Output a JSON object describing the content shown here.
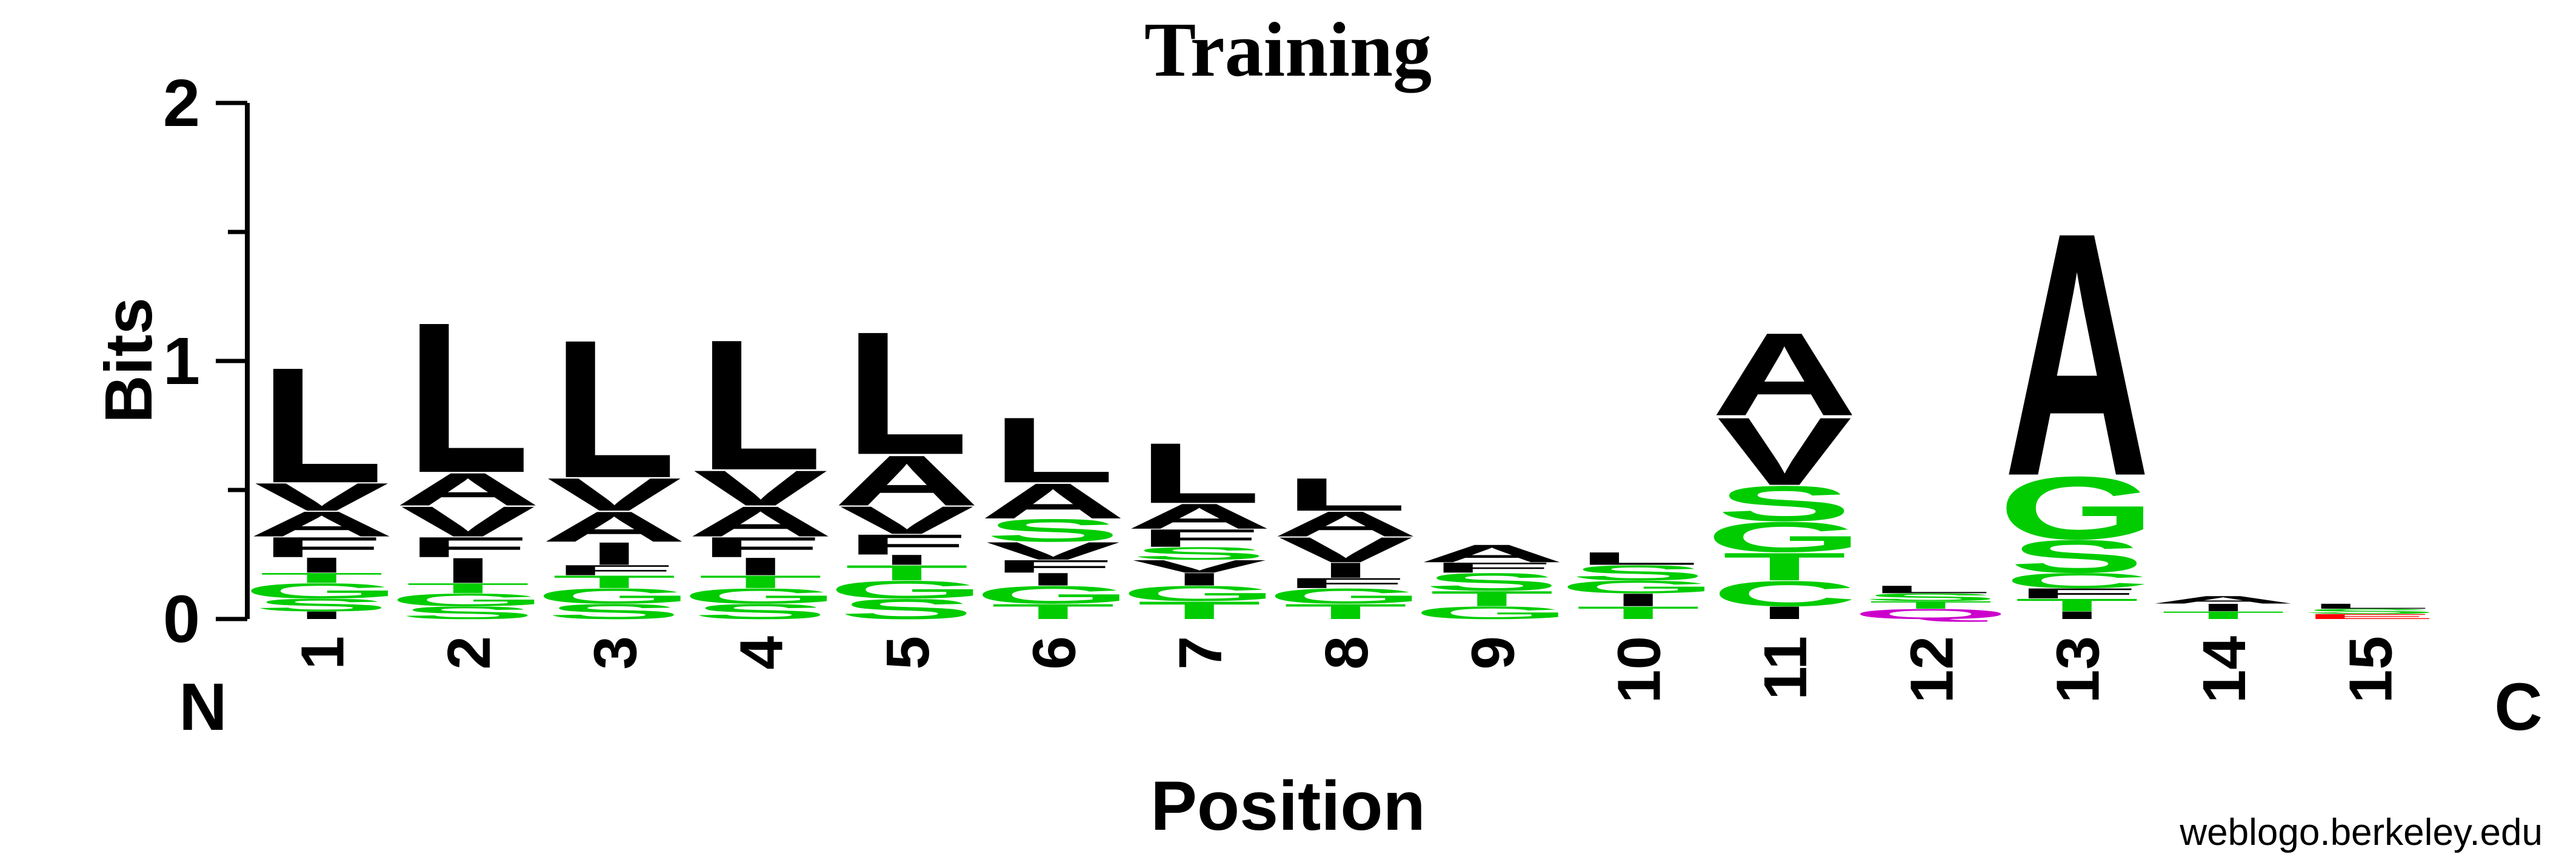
{
  "chart_data": {
    "type": "sequence_logo",
    "title": "Training",
    "ylabel": "Bits",
    "xlabel": "Position",
    "ylim": [
      0,
      2
    ],
    "yticks": [
      "0",
      "1",
      "2"
    ],
    "n_terminal_label": "N",
    "c_terminal_label": "C",
    "footer": "weblogo.berkeley.edu",
    "colors": {
      "hydrophobic": "#000000",
      "polar": "#00cc00",
      "basic": "#0000ff",
      "acidic": "#ff0000",
      "amide": "#cc00cc"
    },
    "positions": [
      {
        "pos": "1",
        "stack": [
          {
            "aa": "I",
            "bits": 0.03,
            "color": "#000000"
          },
          {
            "aa": "S",
            "bits": 0.05,
            "color": "#00cc00"
          },
          {
            "aa": "G",
            "bits": 0.06,
            "color": "#00cc00"
          },
          {
            "aa": "T",
            "bits": 0.04,
            "color": "#00cc00"
          },
          {
            "aa": "I",
            "bits": 0.06,
            "color": "#000000"
          },
          {
            "aa": "F",
            "bits": 0.08,
            "color": "#000000"
          },
          {
            "aa": "A",
            "bits": 0.1,
            "color": "#000000"
          },
          {
            "aa": "V",
            "bits": 0.11,
            "color": "#000000"
          },
          {
            "aa": "L",
            "bits": 0.46,
            "color": "#000000"
          }
        ]
      },
      {
        "pos": "2",
        "stack": [
          {
            "aa": "S",
            "bits": 0.05,
            "color": "#00cc00"
          },
          {
            "aa": "G",
            "bits": 0.05,
            "color": "#00cc00"
          },
          {
            "aa": "T",
            "bits": 0.04,
            "color": "#00cc00"
          },
          {
            "aa": "I",
            "bits": 0.1,
            "color": "#000000"
          },
          {
            "aa": "F",
            "bits": 0.08,
            "color": "#000000"
          },
          {
            "aa": "V",
            "bits": 0.12,
            "color": "#000000"
          },
          {
            "aa": "A",
            "bits": 0.13,
            "color": "#000000"
          },
          {
            "aa": "L",
            "bits": 0.6,
            "color": "#000000"
          }
        ]
      },
      {
        "pos": "3",
        "stack": [
          {
            "aa": "S",
            "bits": 0.06,
            "color": "#00cc00"
          },
          {
            "aa": "G",
            "bits": 0.06,
            "color": "#00cc00"
          },
          {
            "aa": "T",
            "bits": 0.05,
            "color": "#00cc00"
          },
          {
            "aa": "F",
            "bits": 0.04,
            "color": "#000000"
          },
          {
            "aa": "I",
            "bits": 0.09,
            "color": "#000000"
          },
          {
            "aa": "A",
            "bits": 0.12,
            "color": "#000000"
          },
          {
            "aa": "V",
            "bits": 0.13,
            "color": "#000000"
          },
          {
            "aa": "L",
            "bits": 0.55,
            "color": "#000000"
          }
        ]
      },
      {
        "pos": "4",
        "stack": [
          {
            "aa": "S",
            "bits": 0.06,
            "color": "#00cc00"
          },
          {
            "aa": "G",
            "bits": 0.06,
            "color": "#00cc00"
          },
          {
            "aa": "T",
            "bits": 0.05,
            "color": "#00cc00"
          },
          {
            "aa": "I",
            "bits": 0.07,
            "color": "#000000"
          },
          {
            "aa": "F",
            "bits": 0.08,
            "color": "#000000"
          },
          {
            "aa": "A",
            "bits": 0.12,
            "color": "#000000"
          },
          {
            "aa": "V",
            "bits": 0.14,
            "color": "#000000"
          },
          {
            "aa": "L",
            "bits": 0.52,
            "color": "#000000"
          }
        ]
      },
      {
        "pos": "5",
        "stack": [
          {
            "aa": "S",
            "bits": 0.08,
            "color": "#00cc00"
          },
          {
            "aa": "G",
            "bits": 0.07,
            "color": "#00cc00"
          },
          {
            "aa": "T",
            "bits": 0.06,
            "color": "#00cc00"
          },
          {
            "aa": "I",
            "bits": 0.04,
            "color": "#000000"
          },
          {
            "aa": "F",
            "bits": 0.08,
            "color": "#000000"
          },
          {
            "aa": "V",
            "bits": 0.11,
            "color": "#000000"
          },
          {
            "aa": "A",
            "bits": 0.2,
            "color": "#000000"
          },
          {
            "aa": "L",
            "bits": 0.49,
            "color": "#000000"
          }
        ]
      },
      {
        "pos": "6",
        "stack": [
          {
            "aa": "T",
            "bits": 0.06,
            "color": "#00cc00"
          },
          {
            "aa": "G",
            "bits": 0.07,
            "color": "#00cc00"
          },
          {
            "aa": "I",
            "bits": 0.05,
            "color": "#000000"
          },
          {
            "aa": "F",
            "bits": 0.05,
            "color": "#000000"
          },
          {
            "aa": "V",
            "bits": 0.07,
            "color": "#000000"
          },
          {
            "aa": "S",
            "bits": 0.09,
            "color": "#00cc00"
          },
          {
            "aa": "A",
            "bits": 0.14,
            "color": "#000000"
          },
          {
            "aa": "L",
            "bits": 0.26,
            "color": "#000000"
          }
        ]
      },
      {
        "pos": "7",
        "stack": [
          {
            "aa": "T",
            "bits": 0.07,
            "color": "#00cc00"
          },
          {
            "aa": "G",
            "bits": 0.06,
            "color": "#00cc00"
          },
          {
            "aa": "I",
            "bits": 0.05,
            "color": "#000000"
          },
          {
            "aa": "V",
            "bits": 0.05,
            "color": "#000000"
          },
          {
            "aa": "S",
            "bits": 0.05,
            "color": "#00cc00"
          },
          {
            "aa": "F",
            "bits": 0.07,
            "color": "#000000"
          },
          {
            "aa": "A",
            "bits": 0.1,
            "color": "#000000"
          },
          {
            "aa": "L",
            "bits": 0.24,
            "color": "#000000"
          }
        ]
      },
      {
        "pos": "8",
        "stack": [
          {
            "aa": "T",
            "bits": 0.06,
            "color": "#00cc00"
          },
          {
            "aa": "G",
            "bits": 0.06,
            "color": "#00cc00"
          },
          {
            "aa": "F",
            "bits": 0.04,
            "color": "#000000"
          },
          {
            "aa": "I",
            "bits": 0.06,
            "color": "#000000"
          },
          {
            "aa": "V",
            "bits": 0.1,
            "color": "#000000"
          },
          {
            "aa": "A",
            "bits": 0.1,
            "color": "#000000"
          },
          {
            "aa": "L",
            "bits": 0.13,
            "color": "#000000"
          }
        ]
      },
      {
        "pos": "9",
        "stack": [
          {
            "aa": "G",
            "bits": 0.05,
            "color": "#00cc00"
          },
          {
            "aa": "T",
            "bits": 0.06,
            "color": "#00cc00"
          },
          {
            "aa": "S",
            "bits": 0.07,
            "color": "#00cc00"
          },
          {
            "aa": "F",
            "bits": 0.04,
            "color": "#000000"
          },
          {
            "aa": "A",
            "bits": 0.07,
            "color": "#000000"
          }
        ]
      },
      {
        "pos": "10",
        "stack": [
          {
            "aa": "T",
            "bits": 0.05,
            "color": "#00cc00"
          },
          {
            "aa": "I",
            "bits": 0.05,
            "color": "#000000"
          },
          {
            "aa": "G",
            "bits": 0.05,
            "color": "#00cc00"
          },
          {
            "aa": "S",
            "bits": 0.06,
            "color": "#00cc00"
          },
          {
            "aa": "L",
            "bits": 0.05,
            "color": "#000000"
          }
        ]
      },
      {
        "pos": "11",
        "stack": [
          {
            "aa": "I",
            "bits": 0.05,
            "color": "#000000"
          },
          {
            "aa": "C",
            "bits": 0.1,
            "color": "#00cc00"
          },
          {
            "aa": "T",
            "bits": 0.11,
            "color": "#00cc00"
          },
          {
            "aa": "G",
            "bits": 0.12,
            "color": "#00cc00"
          },
          {
            "aa": "S",
            "bits": 0.14,
            "color": "#00cc00"
          },
          {
            "aa": "V",
            "bits": 0.27,
            "color": "#000000"
          },
          {
            "aa": "A",
            "bits": 0.33,
            "color": "#000000"
          }
        ]
      },
      {
        "pos": "12",
        "stack": [
          {
            "aa": "Q",
            "bits": 0.04,
            "color": "#cc00cc"
          },
          {
            "aa": "T",
            "bits": 0.03,
            "color": "#00cc00"
          },
          {
            "aa": "S",
            "bits": 0.03,
            "color": "#00cc00"
          },
          {
            "aa": "L",
            "bits": 0.03,
            "color": "#000000"
          }
        ]
      },
      {
        "pos": "13",
        "stack": [
          {
            "aa": "I",
            "bits": 0.03,
            "color": "#000000"
          },
          {
            "aa": "T",
            "bits": 0.05,
            "color": "#00cc00"
          },
          {
            "aa": "F",
            "bits": 0.04,
            "color": "#000000"
          },
          {
            "aa": "C",
            "bits": 0.06,
            "color": "#00cc00"
          },
          {
            "aa": "S",
            "bits": 0.13,
            "color": "#00cc00"
          },
          {
            "aa": "G",
            "bits": 0.25,
            "color": "#00cc00"
          },
          {
            "aa": "A",
            "bits": 0.97,
            "color": "#000000"
          }
        ]
      },
      {
        "pos": "14",
        "stack": [
          {
            "aa": "T",
            "bits": 0.03,
            "color": "#00cc00"
          },
          {
            "aa": "I",
            "bits": 0.03,
            "color": "#000000"
          },
          {
            "aa": "A",
            "bits": 0.03,
            "color": "#000000"
          }
        ]
      },
      {
        "pos": "15",
        "stack": [
          {
            "aa": "E",
            "bits": 0.02,
            "color": "#ff0000"
          },
          {
            "aa": "S",
            "bits": 0.02,
            "color": "#00cc00"
          },
          {
            "aa": "L",
            "bits": 0.02,
            "color": "#000000"
          }
        ]
      }
    ]
  }
}
